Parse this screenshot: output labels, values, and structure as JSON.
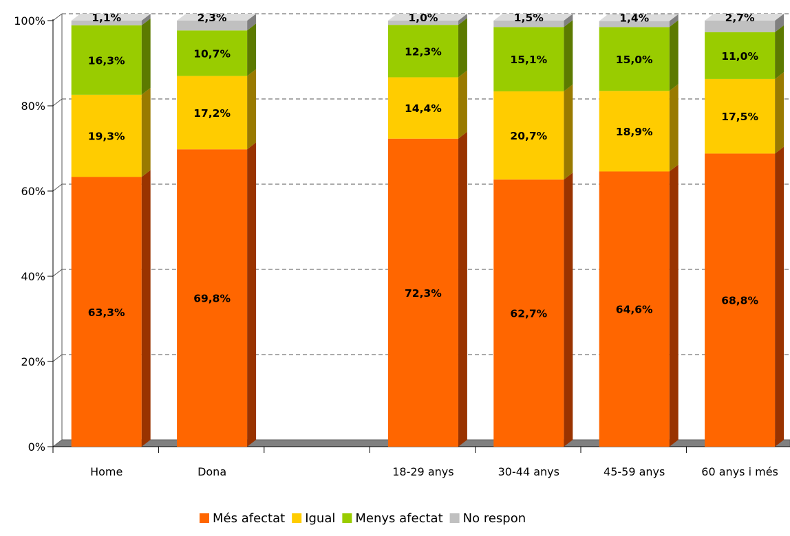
{
  "chart_data": {
    "type": "bar",
    "stacked": true,
    "percent_stacked": true,
    "categories": [
      "Home",
      "Dona",
      "",
      "18-29 anys",
      "30-44 anys",
      "45-59 anys",
      "60 anys i més"
    ],
    "series": [
      {
        "name": "Més afectat",
        "color": "#FF6600",
        "side_color": "#993300",
        "top_color": "#FF9966",
        "values": [
          63.3,
          69.8,
          null,
          72.3,
          62.7,
          64.6,
          68.8
        ],
        "labels": [
          "63,3%",
          "69,8%",
          "",
          "72,3%",
          "62,7%",
          "64,6%",
          "68,8%"
        ]
      },
      {
        "name": "Igual",
        "color": "#FFCC00",
        "side_color": "#997A00",
        "top_color": "#FFE066",
        "values": [
          19.3,
          17.2,
          null,
          14.4,
          20.7,
          18.9,
          17.5
        ],
        "labels": [
          "19,3%",
          "17,2%",
          "",
          "14,4%",
          "20,7%",
          "18,9%",
          "17,5%"
        ]
      },
      {
        "name": "Menys afectat",
        "color": "#99CC00",
        "side_color": "#5C7A00",
        "top_color": "#C2E066",
        "values": [
          16.3,
          10.7,
          null,
          12.3,
          15.1,
          15.0,
          11.0
        ],
        "labels": [
          "16,3%",
          "10,7%",
          "",
          "12,3%",
          "15,1%",
          "15,0%",
          "11,0%"
        ]
      },
      {
        "name": "No respon",
        "color": "#C0C0C0",
        "side_color": "#808080",
        "top_color": "#DCDCDC",
        "values": [
          1.1,
          2.3,
          null,
          1.0,
          1.5,
          1.4,
          2.7
        ],
        "labels": [
          "1,1%",
          "2,3%",
          "",
          "1,0%",
          "1,5%",
          "1,4%",
          "2,7%"
        ]
      }
    ],
    "yticks": [
      "0%",
      "20%",
      "40%",
      "60%",
      "80%",
      "100%"
    ],
    "ylim": [
      0,
      100
    ],
    "grid": true,
    "legend_position": "bottom",
    "title": "",
    "xlabel": "",
    "ylabel": ""
  }
}
